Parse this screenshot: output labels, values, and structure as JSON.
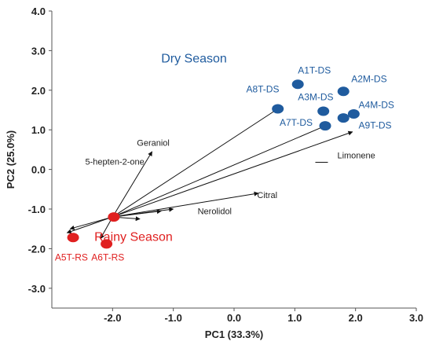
{
  "chart_data": {
    "type": "scatter",
    "xlabel": "PC1 (33.3%)",
    "ylabel": "PC2 (25.0%)",
    "xlim": [
      -3.0,
      3.0
    ],
    "ylim": [
      -3.5,
      4.0
    ],
    "xticks": [
      -2.0,
      -1.0,
      0.0,
      1.0,
      2.0,
      3.0
    ],
    "xtick_labels": [
      "-2.0",
      "-1.0",
      "0.0",
      "1.0",
      "2.0",
      "3.0"
    ],
    "yticks": [
      4.0,
      3.0,
      2.0,
      1.0,
      0.0,
      -1.0,
      -2.0,
      -3.0
    ],
    "ytick_labels": [
      "4.0",
      "3.0",
      "2.0",
      "1.0",
      "0.0",
      "-1.0",
      "-2.0",
      "-3.0"
    ],
    "grid": false,
    "colors": {
      "dry": "#1f5b9e",
      "rainy": "#e02020",
      "axis": "#555555"
    },
    "groups": [
      {
        "label": "Dry Season",
        "label_at": [
          -1.2,
          2.7
        ],
        "color": "#1f5b9e"
      },
      {
        "label": "Rainy Season",
        "label_at": [
          -2.3,
          -1.8
        ],
        "color": "#e02020"
      }
    ],
    "points": [
      {
        "label": "A1T-DS",
        "x": 1.05,
        "y": 2.15,
        "group": "dry",
        "label_at": [
          1.05,
          2.42
        ]
      },
      {
        "label": "A2M-DS",
        "x": 1.8,
        "y": 1.97,
        "group": "dry",
        "label_at": [
          1.93,
          2.2
        ]
      },
      {
        "label": "A8T-DS",
        "x": 0.72,
        "y": 1.53,
        "group": "dry",
        "label_at": [
          0.2,
          1.95
        ]
      },
      {
        "label": "A3M-DS",
        "x": 1.47,
        "y": 1.47,
        "group": "dry",
        "label_at": [
          1.05,
          1.75
        ]
      },
      {
        "label": "A4M-DS",
        "x": 1.97,
        "y": 1.4,
        "group": "dry",
        "label_at": [
          2.05,
          1.55
        ]
      },
      {
        "label": "A7T-DS",
        "x": 1.5,
        "y": 1.1,
        "group": "dry",
        "label_at": [
          0.75,
          1.1
        ]
      },
      {
        "label": "A9T-DS",
        "x": 1.8,
        "y": 1.3,
        "group": "dry",
        "label_at": [
          2.05,
          1.03
        ]
      },
      {
        "label": "A5T-RS",
        "x": -2.65,
        "y": -1.72,
        "group": "rainy",
        "label_at": [
          -2.95,
          -2.3
        ]
      },
      {
        "label": "A6T-RS",
        "x": -2.1,
        "y": -1.88,
        "group": "rainy",
        "label_at": [
          -2.35,
          -2.3
        ]
      },
      {
        "label": "",
        "x": -1.98,
        "y": -1.2,
        "group": "rainy",
        "label_at": [
          0,
          0
        ]
      }
    ],
    "loading_origin": [
      -2.0,
      -1.2
    ],
    "loadings": [
      {
        "label": "Limonene",
        "x": 1.95,
        "y": 0.95,
        "label_at": [
          1.7,
          0.28
        ]
      },
      {
        "label": "Citral",
        "x": 0.4,
        "y": -0.6,
        "label_at": [
          0.38,
          -0.72
        ]
      },
      {
        "label": "Nerolidol",
        "x": -1.2,
        "y": -1.05,
        "label_at": [
          -0.6,
          -1.13
        ]
      },
      {
        "label": "Geraniol",
        "x": -1.35,
        "y": 0.45,
        "label_at": [
          -1.6,
          0.6
        ]
      },
      {
        "label": "5-hepten-2-one",
        "x": -2.7,
        "y": -1.5,
        "label_at": [
          -2.45,
          0.12
        ]
      }
    ],
    "extra_arrows": [
      {
        "x": -1.0,
        "y": -1.0
      },
      {
        "x": 0.72,
        "y": 1.53
      },
      {
        "x": 1.5,
        "y": 1.1
      },
      {
        "x": -2.75,
        "y": -1.6
      },
      {
        "x": -2.2,
        "y": -1.75
      },
      {
        "x": -1.55,
        "y": -1.25
      }
    ]
  }
}
